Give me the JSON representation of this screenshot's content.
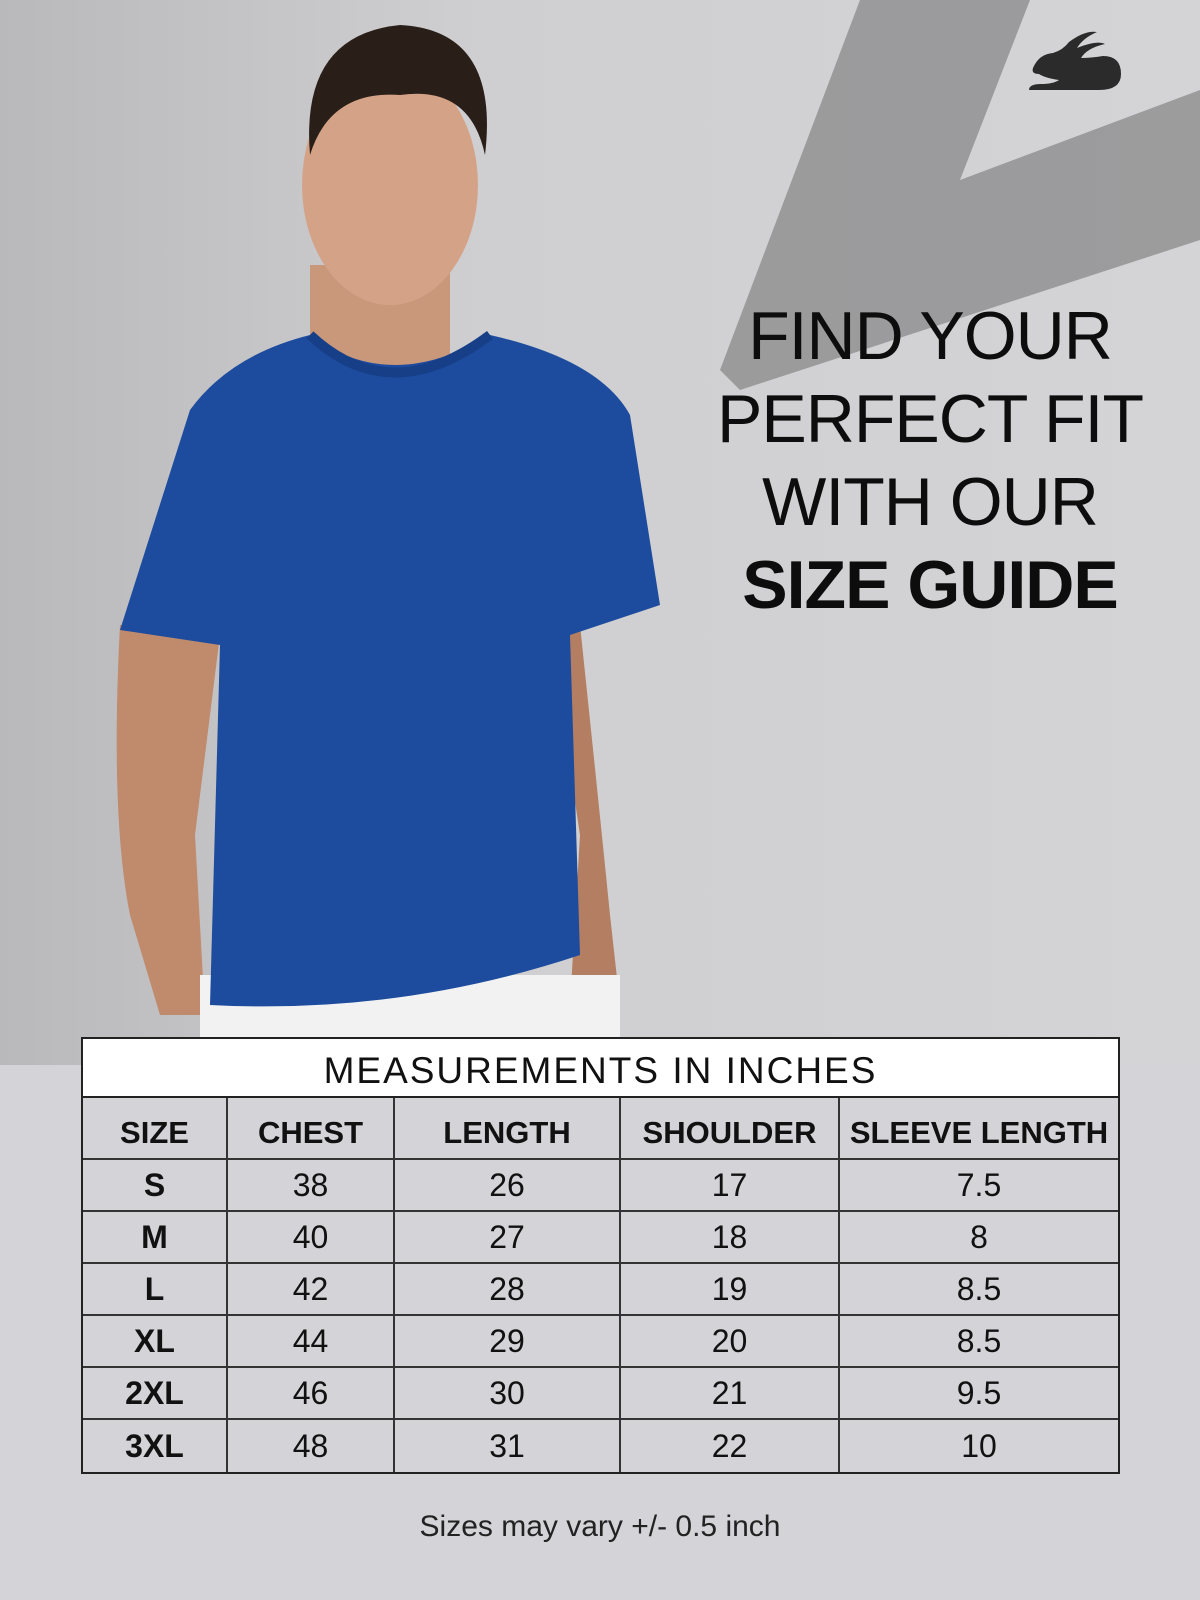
{
  "brand": {
    "logo": "rabbit-logo"
  },
  "headline": {
    "line1": "FIND YOUR",
    "line2": "PERFECT FIT",
    "line3": "WITH OUR",
    "line4": "SIZE GUIDE"
  },
  "colors": {
    "shirt": "#1d4c9e",
    "background": "#d3d3d8"
  },
  "table": {
    "title": "MEASUREMENTS IN INCHES",
    "headers": [
      "SIZE",
      "CHEST",
      "LENGTH",
      "SHOULDER",
      "SLEEVE LENGTH"
    ],
    "rows": [
      [
        "S",
        "38",
        "26",
        "17",
        "7.5"
      ],
      [
        "M",
        "40",
        "27",
        "18",
        "8"
      ],
      [
        "L",
        "42",
        "28",
        "19",
        "8.5"
      ],
      [
        "XL",
        "44",
        "29",
        "20",
        "8.5"
      ],
      [
        "2XL",
        "46",
        "30",
        "21",
        "9.5"
      ],
      [
        "3XL",
        "48",
        "31",
        "22",
        "10"
      ]
    ]
  },
  "note": "Sizes may vary +/- 0.5 inch"
}
